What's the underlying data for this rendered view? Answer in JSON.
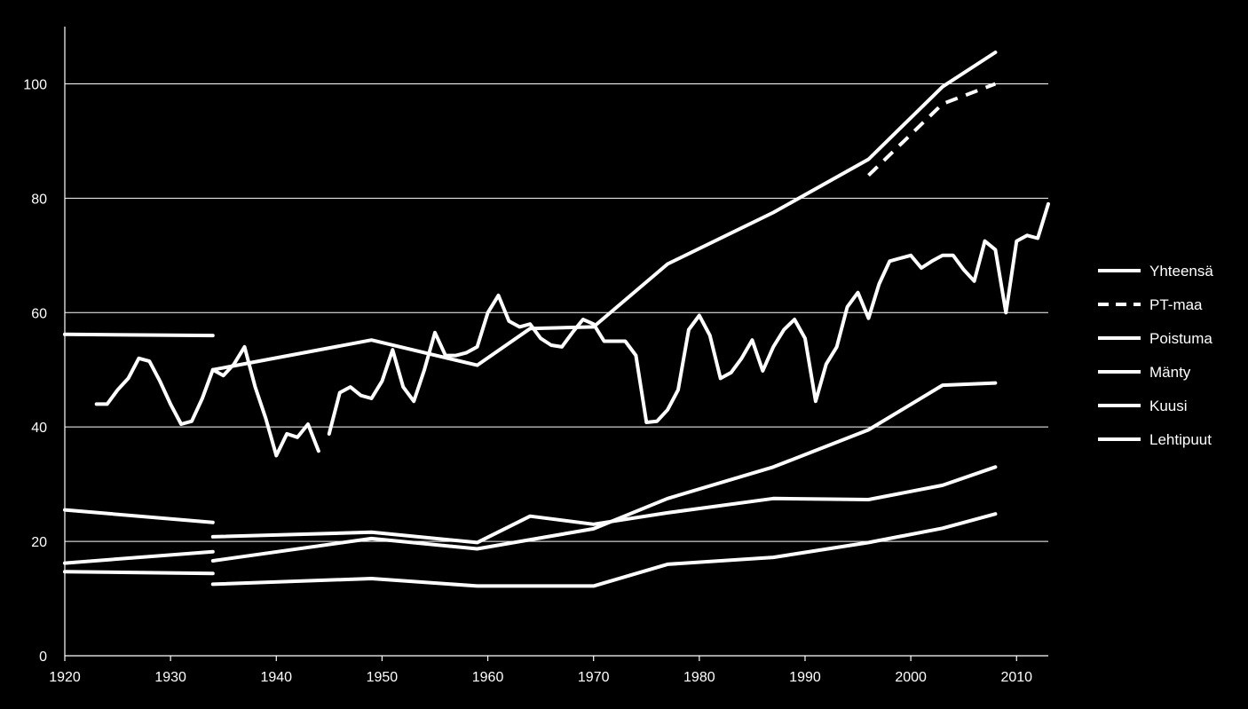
{
  "chart_data": {
    "type": "line",
    "title": "",
    "xlabel": "",
    "ylabel": "",
    "xlim": [
      1920,
      2013
    ],
    "ylim": [
      0,
      110
    ],
    "x_ticks": [
      "1920",
      "1930",
      "1940",
      "1950",
      "1960",
      "1970",
      "1980",
      "1990",
      "2000",
      "2010"
    ],
    "y_ticks": [
      "0",
      "20",
      "40",
      "60",
      "80",
      "100"
    ],
    "grid": "horizontal",
    "legend_position": "right",
    "line_color": "#ffffff",
    "background": "#000000",
    "series": [
      {
        "name": "Yhteensä",
        "style": "solid",
        "segments": [
          [
            [
              1920,
              56.2
            ],
            [
              1934,
              56.0
            ]
          ],
          [
            [
              1934,
              50.0
            ],
            [
              1949,
              55.2
            ],
            [
              1959,
              50.8
            ],
            [
              1964,
              57.2
            ],
            [
              1970,
              57.5
            ],
            [
              1977,
              68.5
            ],
            [
              1987,
              77.5
            ],
            [
              1996,
              86.8
            ],
            [
              2003,
              99.5
            ],
            [
              2008,
              105.5
            ]
          ]
        ]
      },
      {
        "name": "PT-maa",
        "style": "dashed",
        "segments": [
          [
            [
              1996,
              84.0
            ],
            [
              2003,
              96.5
            ],
            [
              2008,
              100.0
            ]
          ]
        ]
      },
      {
        "name": "Poistuma",
        "style": "solid",
        "segments": [
          [
            [
              1923,
              44.0
            ],
            [
              1924,
              44.0
            ],
            [
              1925,
              46.5
            ],
            [
              1926,
              48.5
            ],
            [
              1927,
              52.0
            ],
            [
              1928,
              51.5
            ],
            [
              1929,
              48.0
            ],
            [
              1930,
              44.0
            ],
            [
              1931,
              40.5
            ],
            [
              1932,
              41.0
            ],
            [
              1933,
              45.0
            ],
            [
              1934,
              50.0
            ],
            [
              1935,
              49.0
            ],
            [
              1936,
              51.0
            ],
            [
              1937,
              54.0
            ],
            [
              1938,
              47.0
            ],
            [
              1939,
              41.5
            ],
            [
              1940,
              35.0
            ],
            [
              1941,
              38.8
            ],
            [
              1942,
              38.2
            ],
            [
              1943,
              40.5
            ],
            [
              1944,
              35.8
            ]
          ],
          [
            [
              1945,
              38.8
            ],
            [
              1946,
              46.0
            ],
            [
              1947,
              47.0
            ],
            [
              1948,
              45.5
            ],
            [
              1949,
              45.0
            ],
            [
              1950,
              48.0
            ],
            [
              1951,
              53.5
            ],
            [
              1952,
              47.0
            ],
            [
              1953,
              44.5
            ],
            [
              1954,
              50.0
            ],
            [
              1955,
              56.5
            ],
            [
              1956,
              52.5
            ],
            [
              1957,
              52.5
            ],
            [
              1958,
              53.0
            ],
            [
              1959,
              54.0
            ],
            [
              1960,
              60.0
            ],
            [
              1961,
              63.0
            ],
            [
              1962,
              58.5
            ],
            [
              1963,
              57.5
            ],
            [
              1964,
              58.0
            ],
            [
              1965,
              55.5
            ],
            [
              1966,
              54.3
            ],
            [
              1967,
              54.0
            ],
            [
              1968,
              56.5
            ],
            [
              1969,
              58.8
            ],
            [
              1970,
              58.0
            ],
            [
              1971,
              55.0
            ],
            [
              1972,
              55.0
            ],
            [
              1973,
              55.0
            ],
            [
              1974,
              52.5
            ],
            [
              1975,
              40.8
            ],
            [
              1976,
              41.0
            ],
            [
              1977,
              43.0
            ],
            [
              1978,
              46.5
            ],
            [
              1979,
              57.0
            ],
            [
              1980,
              59.5
            ],
            [
              1981,
              56.0
            ],
            [
              1982,
              48.5
            ],
            [
              1983,
              49.5
            ],
            [
              1984,
              52.0
            ],
            [
              1985,
              55.2
            ],
            [
              1986,
              49.8
            ],
            [
              1987,
              54.0
            ],
            [
              1988,
              57.0
            ],
            [
              1989,
              58.8
            ],
            [
              1990,
              55.5
            ],
            [
              1991,
              44.5
            ],
            [
              1992,
              51.0
            ],
            [
              1993,
              54.0
            ],
            [
              1994,
              61.0
            ],
            [
              1995,
              63.5
            ],
            [
              1996,
              59.0
            ],
            [
              1997,
              65.0
            ],
            [
              1998,
              69.0
            ],
            [
              1999,
              69.5
            ],
            [
              2000,
              70.0
            ],
            [
              2001,
              67.8
            ],
            [
              2002,
              69.0
            ],
            [
              2003,
              70.0
            ],
            [
              2004,
              70.0
            ],
            [
              2005,
              67.5
            ],
            [
              2006,
              65.5
            ],
            [
              2007,
              72.5
            ],
            [
              2008,
              71.0
            ],
            [
              2009,
              60.0
            ],
            [
              2010,
              72.5
            ],
            [
              2011,
              73.5
            ],
            [
              2012,
              73.0
            ],
            [
              2013,
              79.0
            ]
          ]
        ]
      },
      {
        "name": "Mänty",
        "style": "solid",
        "segments": [
          [
            [
              1920,
              25.5
            ],
            [
              1934,
              23.3
            ]
          ],
          [
            [
              1934,
              16.6
            ],
            [
              1949,
              20.5
            ],
            [
              1959,
              18.7
            ],
            [
              1970,
              22.2
            ],
            [
              1977,
              27.5
            ],
            [
              1987,
              33.0
            ],
            [
              1996,
              39.5
            ],
            [
              2003,
              47.3
            ],
            [
              2008,
              47.7
            ]
          ]
        ]
      },
      {
        "name": "Kuusi",
        "style": "solid",
        "segments": [
          [
            [
              1920,
              16.2
            ],
            [
              1934,
              18.2
            ]
          ],
          [
            [
              1934,
              20.8
            ],
            [
              1949,
              21.6
            ],
            [
              1959,
              19.8
            ],
            [
              1964,
              24.4
            ],
            [
              1970,
              23.0
            ],
            [
              1977,
              25.0
            ],
            [
              1987,
              27.5
            ],
            [
              1996,
              27.3
            ],
            [
              2003,
              29.8
            ],
            [
              2008,
              33.0
            ]
          ]
        ]
      },
      {
        "name": "Lehtipuut",
        "style": "solid",
        "segments": [
          [
            [
              1920,
              14.7
            ],
            [
              1934,
              14.4
            ]
          ],
          [
            [
              1934,
              12.5
            ],
            [
              1949,
              13.5
            ],
            [
              1959,
              12.2
            ],
            [
              1970,
              12.2
            ],
            [
              1977,
              16.0
            ],
            [
              1987,
              17.2
            ],
            [
              1996,
              19.8
            ],
            [
              2003,
              22.3
            ],
            [
              2008,
              24.8
            ]
          ]
        ]
      }
    ]
  }
}
